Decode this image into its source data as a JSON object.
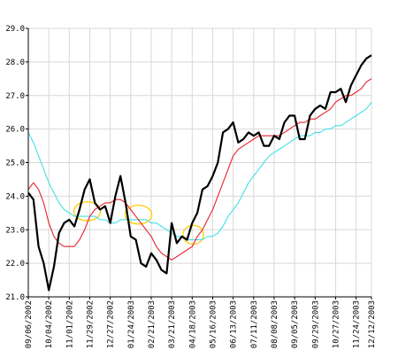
{
  "chart_data": {
    "type": "line",
    "title": "",
    "xlabel": "",
    "ylabel": "",
    "ylim": [
      21.0,
      29.0
    ],
    "yticks": [
      "21.0",
      "22.0",
      "23.0",
      "24.0",
      "25.0",
      "26.0",
      "27.0",
      "28.0",
      "29.0"
    ],
    "y_tick_values": [
      21,
      22,
      23,
      24,
      25,
      26,
      27,
      28,
      29
    ],
    "xticks": [
      "09/06/2002",
      "10/04/2002",
      "11/01/2002",
      "11/29/2002",
      "12/27/2002",
      "01/24/2003",
      "02/21/2003",
      "03/21/2003",
      "04/18/2003",
      "05/16/2003",
      "06/13/2003",
      "07/11/2003",
      "08/08/2003",
      "09/05/2003",
      "09/29/2003",
      "10/27/2003",
      "11/24/2003",
      "12/12/2003"
    ],
    "x_tick_index": [
      0,
      4,
      8,
      12,
      16,
      20,
      24,
      28,
      32,
      36,
      40,
      44,
      48,
      52,
      56,
      60,
      64,
      67
    ],
    "x_count": 68,
    "grid": true,
    "colors": {
      "price": "#000000",
      "ma_short": "#e8202a",
      "ma_long": "#40e0e8",
      "ellipse": "#ffcc00",
      "grid": "#d8d8d8",
      "axis": "#000000"
    },
    "series": [
      {
        "key": "price",
        "values": [
          24.1,
          23.9,
          22.5,
          22.0,
          21.2,
          21.9,
          22.9,
          23.2,
          23.3,
          23.1,
          23.6,
          24.2,
          24.5,
          23.8,
          23.6,
          23.7,
          23.2,
          24.0,
          24.6,
          23.8,
          22.8,
          22.7,
          22.0,
          21.9,
          22.3,
          22.1,
          21.8,
          21.7,
          23.2,
          22.6,
          22.8,
          22.7,
          23.2,
          23.5,
          24.2,
          24.3,
          24.6,
          25.0,
          25.9,
          26.0,
          26.2,
          25.6,
          25.7,
          25.9,
          25.8,
          25.9,
          25.5,
          25.5,
          25.8,
          25.7,
          26.2,
          26.4,
          26.4,
          25.7,
          25.7,
          26.4,
          26.6,
          26.7,
          26.6,
          27.1,
          27.1,
          27.2,
          26.8,
          27.3,
          27.6,
          27.9,
          28.1,
          28.2
        ]
      },
      {
        "key": "ma_short",
        "values": [
          24.2,
          24.4,
          24.2,
          23.8,
          23.2,
          22.8,
          22.6,
          22.5,
          22.5,
          22.5,
          22.7,
          23.0,
          23.4,
          23.6,
          23.7,
          23.8,
          23.8,
          23.9,
          23.9,
          23.8,
          23.6,
          23.4,
          23.2,
          23.0,
          22.8,
          22.5,
          22.3,
          22.2,
          22.1,
          22.2,
          22.3,
          22.4,
          22.5,
          22.8,
          23.0,
          23.3,
          23.6,
          24.0,
          24.4,
          24.8,
          25.2,
          25.4,
          25.5,
          25.6,
          25.7,
          25.8,
          25.8,
          25.8,
          25.8,
          25.8,
          25.9,
          26.0,
          26.1,
          26.2,
          26.2,
          26.3,
          26.3,
          26.4,
          26.5,
          26.6,
          26.8,
          26.9,
          27.0,
          27.0,
          27.1,
          27.2,
          27.4,
          27.5
        ]
      },
      {
        "key": "ma_long",
        "values": [
          25.9,
          25.6,
          25.2,
          24.8,
          24.4,
          24.1,
          23.8,
          23.6,
          23.5,
          23.4,
          23.4,
          23.4,
          23.4,
          23.4,
          23.3,
          23.3,
          23.2,
          23.2,
          23.3,
          23.3,
          23.3,
          23.3,
          23.3,
          23.3,
          23.2,
          23.2,
          23.1,
          23.0,
          22.9,
          22.8,
          22.8,
          22.7,
          22.7,
          22.7,
          22.7,
          22.8,
          22.8,
          22.9,
          23.1,
          23.4,
          23.6,
          23.8,
          24.1,
          24.4,
          24.6,
          24.8,
          25.0,
          25.2,
          25.3,
          25.4,
          25.5,
          25.6,
          25.7,
          25.8,
          25.8,
          25.8,
          25.9,
          25.9,
          26.0,
          26.0,
          26.1,
          26.1,
          26.2,
          26.3,
          26.4,
          26.5,
          26.6,
          26.8
        ]
      }
    ],
    "annotations": [
      {
        "type": "ellipse",
        "x": 11.5,
        "y": 23.55,
        "rx": 2.6,
        "ry": 0.28
      },
      {
        "type": "ellipse",
        "x": 21.5,
        "y": 23.45,
        "rx": 2.6,
        "ry": 0.28
      },
      {
        "type": "ellipse",
        "x": 32.2,
        "y": 22.85,
        "rx": 2.0,
        "ry": 0.28
      }
    ]
  }
}
